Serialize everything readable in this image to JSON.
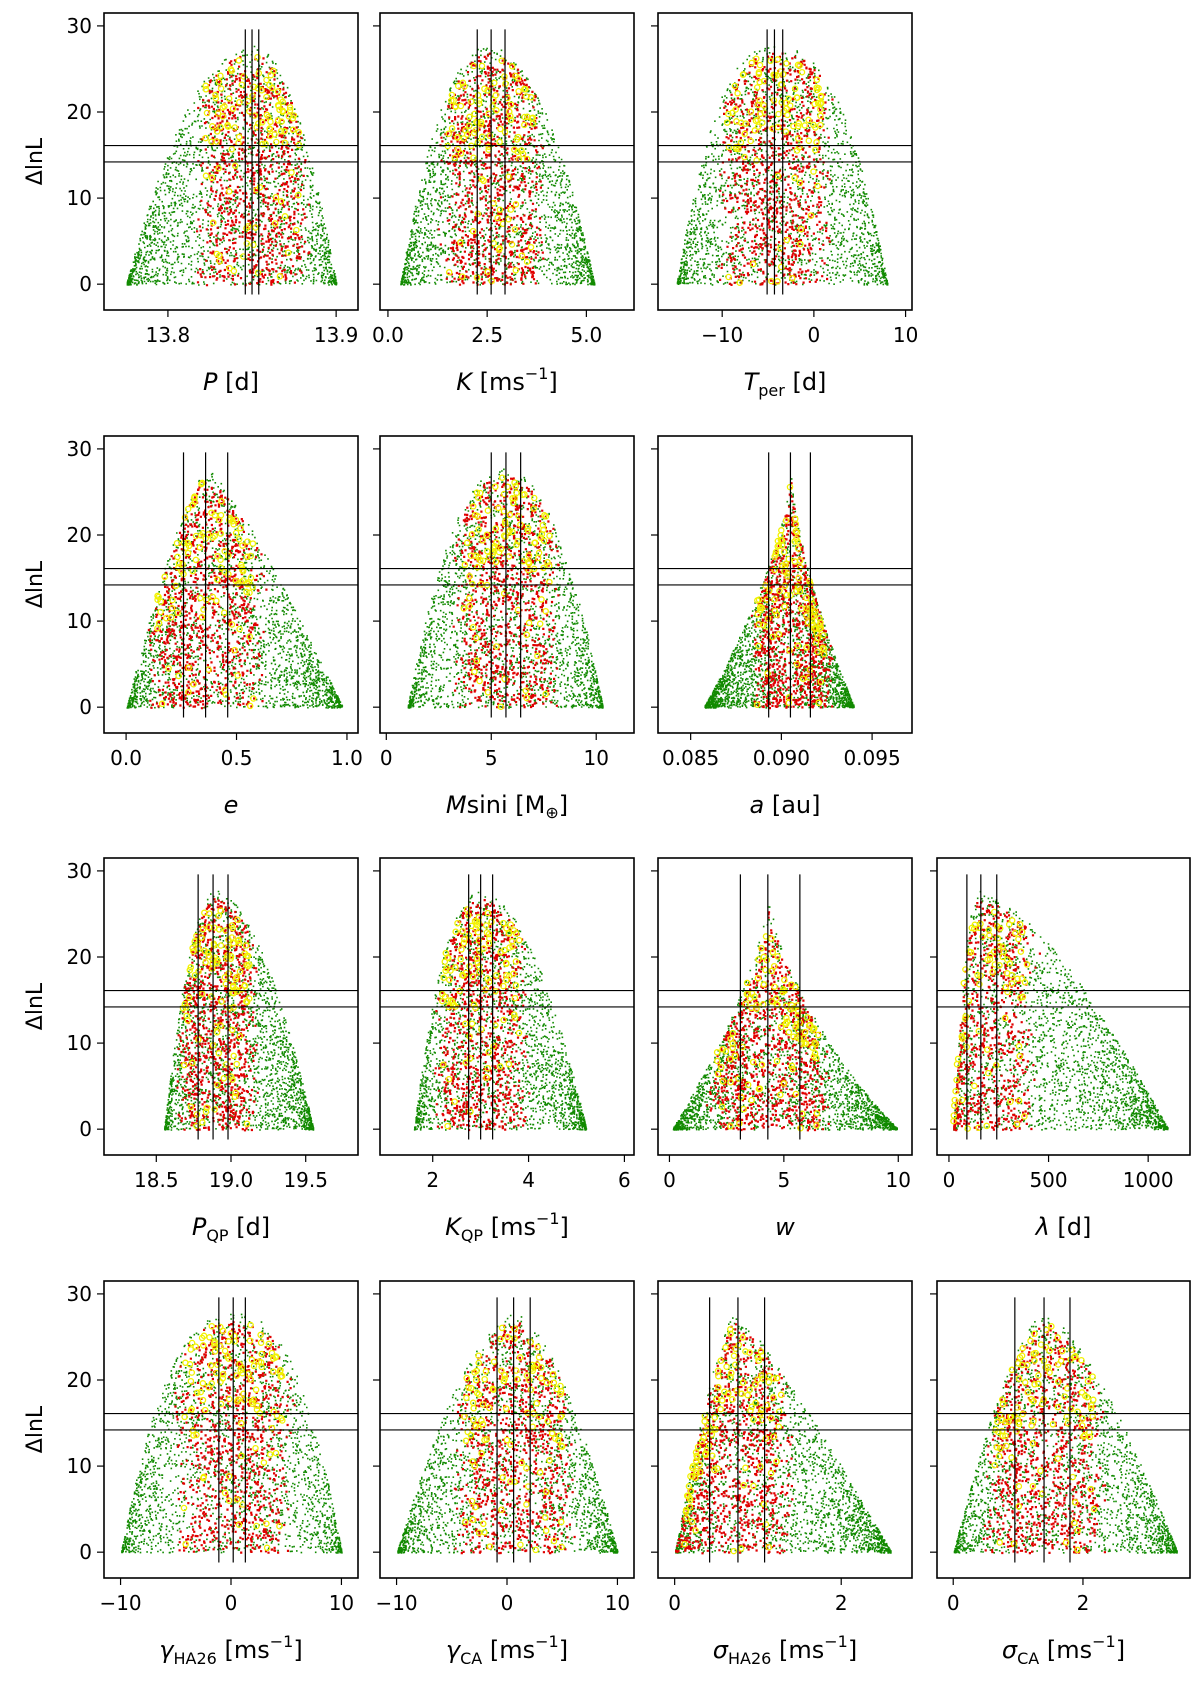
{
  "chart_data": {
    "type": "scatter",
    "title": "",
    "ylabel": "ΔlnL",
    "yticks": [
      0,
      10,
      20,
      30
    ],
    "ylim": [
      -3,
      31.5
    ],
    "max_delta_lnl": 27.8,
    "threshold_lines": [
      14.2,
      16.1
    ],
    "point_classes": [
      {
        "name": "green",
        "color": "#118a00",
        "rule": "all samples"
      },
      {
        "name": "red",
        "color": "#e00000",
        "rule": "high-likelihood samples"
      },
      {
        "name": "yellow",
        "color": "#f2f200",
        "rule": "top samples (circles)"
      }
    ],
    "panels": [
      {
        "id": "P",
        "row": 0,
        "col": 0,
        "label": {
          "sym": "P",
          "sub": "",
          "unit": " [d]",
          "sup": ""
        },
        "xlim": [
          13.762,
          13.913
        ],
        "xticks": [
          13.8,
          13.9
        ],
        "xtick_labels": [
          "13.8",
          "13.9"
        ],
        "xmin": 13.775,
        "xmax": 13.9,
        "peak": 13.85,
        "skew": 0,
        "flat": 1.0,
        "vlines": [
          13.846,
          13.85,
          13.854
        ]
      },
      {
        "id": "K",
        "row": 0,
        "col": 1,
        "label": {
          "sym": "K",
          "sub": "",
          "unit": " [ms",
          "sup": "−1"
        },
        "xlim": [
          -0.2,
          6.2
        ],
        "xticks": [
          0.0,
          2.5,
          5.0
        ],
        "xtick_labels": [
          "0.0",
          "2.5",
          "5.0"
        ],
        "xmin": 0.3,
        "xmax": 5.2,
        "peak": 2.6,
        "skew": 0.3,
        "flat": 0.9,
        "vlines": [
          2.25,
          2.6,
          2.95
        ]
      },
      {
        "id": "Tper",
        "row": 0,
        "col": 2,
        "label": {
          "sym": "T",
          "sub": "per",
          "unit": " [d]",
          "sup": ""
        },
        "xlim": [
          -17,
          10.7
        ],
        "xticks": [
          -10,
          0,
          10
        ],
        "xtick_labels": [
          "−10",
          "0",
          "10"
        ],
        "xmin": -15,
        "xmax": 8,
        "peak": -4.3,
        "skew": 0,
        "flat": 0.8,
        "vlines": [
          -5.1,
          -4.3,
          -3.4
        ]
      },
      {
        "id": "e",
        "row": 1,
        "col": 0,
        "label": {
          "sym": "e",
          "sub": "",
          "unit": "",
          "sup": ""
        },
        "xlim": [
          -0.1,
          1.05
        ],
        "xticks": [
          0.0,
          0.5,
          1.0
        ],
        "xtick_labels": [
          "0.0",
          "0.5",
          "1.0"
        ],
        "xmin": 0.0,
        "xmax": 0.98,
        "peak": 0.36,
        "skew": 0.3,
        "flat": 1.5,
        "vlines": [
          0.26,
          0.36,
          0.46
        ]
      },
      {
        "id": "Msini",
        "row": 1,
        "col": 1,
        "label": {
          "sym": "M",
          "sub": "",
          "unit": "sini [M",
          "sup": "",
          "tail": "⊕]"
        },
        "xlim": [
          -0.3,
          11.8
        ],
        "xticks": [
          0,
          5,
          10
        ],
        "xtick_labels": [
          "0",
          "5",
          "10"
        ],
        "xmin": 1.0,
        "xmax": 10.3,
        "peak": 5.7,
        "skew": 0.2,
        "flat": 0.9,
        "vlines": [
          5.0,
          5.7,
          6.4
        ]
      },
      {
        "id": "a",
        "row": 1,
        "col": 2,
        "label": {
          "sym": "a",
          "sub": "",
          "unit": " [au]",
          "sup": ""
        },
        "xlim": [
          0.0832,
          0.0972
        ],
        "xticks": [
          0.085,
          0.09,
          0.095
        ],
        "xtick_labels": [
          "0.085",
          "0.090",
          "0.095"
        ],
        "xmin": 0.0857,
        "xmax": 0.094,
        "peak": 0.0905,
        "skew": 0,
        "flat": 3.0,
        "vlines": [
          0.0893,
          0.0905,
          0.0916
        ]
      },
      {
        "id": "PQP",
        "row": 2,
        "col": 0,
        "label": {
          "sym": "P",
          "sub": "QP",
          "unit": " [d]",
          "sup": ""
        },
        "xlim": [
          18.15,
          19.85
        ],
        "xticks": [
          18.5,
          19.0,
          19.5
        ],
        "xtick_labels": [
          "18.5",
          "19.0",
          "19.5"
        ],
        "xmin": 18.55,
        "xmax": 19.55,
        "peak": 18.9,
        "skew": 0.3,
        "flat": 1.0,
        "vlines": [
          18.78,
          18.88,
          18.98
        ]
      },
      {
        "id": "KQP",
        "row": 2,
        "col": 1,
        "label": {
          "sym": "K",
          "sub": "QP",
          "unit": " [ms",
          "sup": "−1"
        },
        "xlim": [
          0.9,
          6.2
        ],
        "xticks": [
          2,
          4,
          6
        ],
        "xtick_labels": [
          "2",
          "4",
          "6"
        ],
        "xmin": 1.6,
        "xmax": 5.2,
        "peak": 3.0,
        "skew": 0.4,
        "flat": 0.9,
        "vlines": [
          2.75,
          3.0,
          3.25
        ]
      },
      {
        "id": "w",
        "row": 2,
        "col": 2,
        "label": {
          "sym": "w",
          "sub": "",
          "unit": "",
          "sup": ""
        },
        "xlim": [
          -0.5,
          10.6
        ],
        "xticks": [
          0,
          5,
          10
        ],
        "xtick_labels": [
          "0",
          "5",
          "10"
        ],
        "xmin": 0.1,
        "xmax": 10.0,
        "peak": 4.3,
        "skew": 0.5,
        "flat": 3.0,
        "vlines": [
          3.1,
          4.3,
          5.7
        ]
      },
      {
        "id": "lambda",
        "row": 2,
        "col": 3,
        "label": {
          "sym": "λ",
          "sub": "",
          "unit": " [d]",
          "sup": ""
        },
        "xlim": [
          -60,
          1210
        ],
        "xticks": [
          0,
          500,
          1000
        ],
        "xtick_labels": [
          "0",
          "500",
          "1000"
        ],
        "xmin": 20,
        "xmax": 1100,
        "peak": 150,
        "skew": 0.8,
        "flat": 1.0,
        "vlines": [
          90,
          160,
          240
        ]
      },
      {
        "id": "gHA26",
        "row": 3,
        "col": 0,
        "label": {
          "sym": "γ",
          "sub": "HA26",
          "unit": " [ms",
          "sup": "−1"
        },
        "xlim": [
          -11.5,
          11.5
        ],
        "xticks": [
          -10,
          0,
          10
        ],
        "xtick_labels": [
          "−10",
          "0",
          "10"
        ],
        "xmin": -10,
        "xmax": 10,
        "peak": 0.2,
        "skew": 0,
        "flat": 0.8,
        "vlines": [
          -1.1,
          0.2,
          1.3
        ]
      },
      {
        "id": "gCA",
        "row": 3,
        "col": 1,
        "label": {
          "sym": "γ",
          "sub": "CA",
          "unit": " [ms",
          "sup": "−1"
        },
        "xlim": [
          -11.5,
          11.5
        ],
        "xticks": [
          -10,
          0,
          10
        ],
        "xtick_labels": [
          "−10",
          "0",
          "10"
        ],
        "xmin": -10,
        "xmax": 10,
        "peak": 0.6,
        "skew": 0,
        "flat": 1.2,
        "vlines": [
          -0.9,
          0.6,
          2.1
        ]
      },
      {
        "id": "sHA26",
        "row": 3,
        "col": 2,
        "label": {
          "sym": "σ",
          "sub": "HA26",
          "unit": " [ms",
          "sup": "−1"
        },
        "xlim": [
          -0.2,
          2.85
        ],
        "xticks": [
          0,
          2
        ],
        "xtick_labels": [
          "0",
          "2"
        ],
        "xmin": 0.0,
        "xmax": 2.6,
        "peak": 0.7,
        "skew": 0.4,
        "flat": 1.5,
        "vlines": [
          0.42,
          0.76,
          1.08
        ]
      },
      {
        "id": "sCA",
        "row": 3,
        "col": 3,
        "label": {
          "sym": "σ",
          "sub": "CA",
          "unit": " [ms",
          "sup": "−1"
        },
        "xlim": [
          -0.25,
          3.65
        ],
        "xticks": [
          0,
          2
        ],
        "xtick_labels": [
          "0",
          "2"
        ],
        "xmin": 0.0,
        "xmax": 3.45,
        "peak": 1.4,
        "skew": 0.2,
        "flat": 1.3,
        "vlines": [
          0.95,
          1.4,
          1.8
        ]
      }
    ]
  }
}
